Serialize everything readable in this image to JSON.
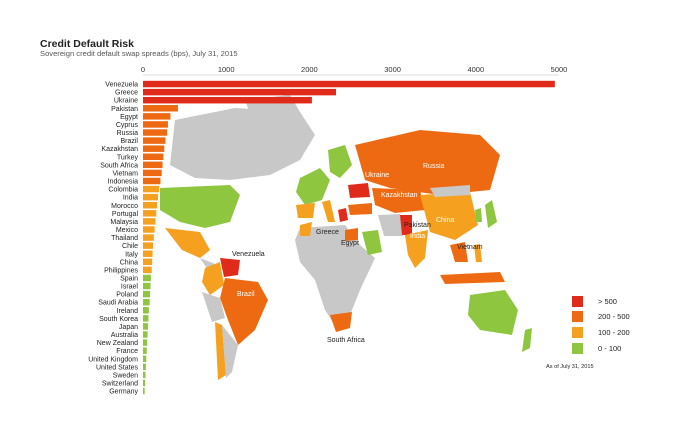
{
  "header": {
    "title": "Credit Default Risk",
    "subtitle": "Sovereign credit default swap spreads (bps), July 31, 2015"
  },
  "chart_data": {
    "type": "bar",
    "orientation": "horizontal",
    "title": "Credit Default Risk",
    "subtitle": "Sovereign credit default swap spreads (bps), July 31, 2015",
    "xlim": [
      0,
      5000
    ],
    "x_ticks": [
      "0",
      "1000",
      "2000",
      "3000",
      "4000",
      "5000"
    ],
    "tick_values": [
      0,
      1000,
      2000,
      3000,
      4000,
      5000
    ],
    "grid": false,
    "categories": [
      "Venezuela",
      "Greece",
      "Ukraine",
      "Pakistan",
      "Egypt",
      "Cyprus",
      "Russia",
      "Brazil",
      "Kazakhstan",
      "Turkey",
      "South Africa",
      "Vietnam",
      "Indonesia",
      "Colombia",
      "India",
      "Morocco",
      "Portugal",
      "Malaysia",
      "Mexico",
      "Thailand",
      "Chile",
      "Italy",
      "China",
      "Philippines",
      "Spain",
      "Israel",
      "Poland",
      "Saudi Arabia",
      "Ireland",
      "South Korea",
      "Japan",
      "Australia",
      "New Zealand",
      "France",
      "United Kingdom",
      "United States",
      "Sweden",
      "Switzerland",
      "Germany"
    ],
    "values": [
      4950,
      2320,
      2030,
      420,
      330,
      300,
      290,
      270,
      255,
      245,
      235,
      225,
      210,
      195,
      180,
      170,
      160,
      150,
      140,
      130,
      120,
      115,
      110,
      105,
      95,
      90,
      85,
      80,
      70,
      65,
      60,
      55,
      50,
      45,
      40,
      35,
      30,
      25,
      20
    ],
    "legend": {
      "placement": "bottom-right",
      "entries": [
        {
          "label": "> 500",
          "color": "#e02b1a"
        },
        {
          "label": "200 - 500",
          "color": "#ee6a12"
        },
        {
          "label": "100 - 200",
          "color": "#f5a01e"
        },
        {
          "label": "0 - 100",
          "color": "#8ec63f"
        }
      ]
    },
    "annotation": "As of July 31, 2015",
    "map_labels": [
      "Ukraine",
      "Russia",
      "Kazakhstan",
      "Greece",
      "Egypt",
      "Pakistan",
      "China",
      "India",
      "Vietnam",
      "Venezuela",
      "Brazil",
      "South Africa"
    ]
  },
  "colors": {
    "gt500": "#e02b1a",
    "c200_500": "#ee6a12",
    "c100_200": "#f5a01e",
    "c0_100": "#8ec63f",
    "no_data": "#c8c8c8"
  }
}
